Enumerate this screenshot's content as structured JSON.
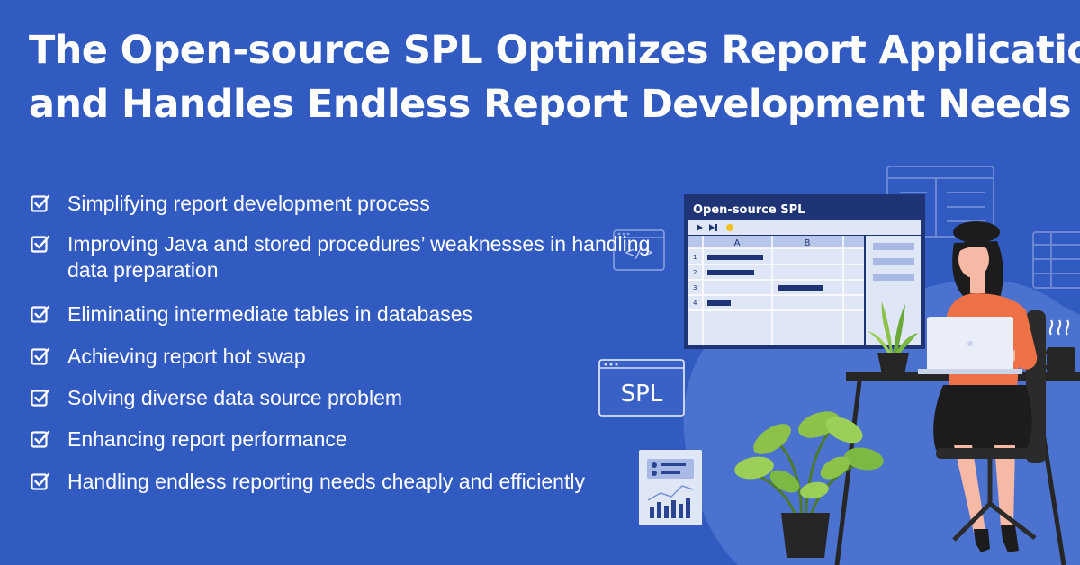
{
  "headline": {
    "line1": "The Open-source SPL Optimizes Report Application",
    "line2": "and Handles Endless Report Development Needs"
  },
  "features": [
    "Simplifying report development process",
    "Improving Java and stored procedures’ weaknesses in handling data preparation",
    "Eliminating intermediate tables in databases",
    "Achieving report hot swap",
    "Solving diverse data source problem",
    "Enhancing report performance",
    "Handling endless reporting needs cheaply and efficiently"
  ],
  "check_icon": "checkbox-check-icon",
  "spl_window": {
    "title": "Open-source SPL",
    "columns": [
      "A",
      "B"
    ],
    "rows": [
      "1",
      "2",
      "3",
      "4"
    ]
  },
  "spl_card_label": "SPL",
  "code_icon_label": "</>",
  "colors": {
    "background": "#325bc2",
    "text": "#ffffff",
    "window_dark": "#1f3474",
    "window_light": "#dfe6f6",
    "blob": "#4b72cf",
    "shirt": "#ef7148",
    "skirt": "#1c1c1c",
    "plant": "#8dc24a"
  }
}
